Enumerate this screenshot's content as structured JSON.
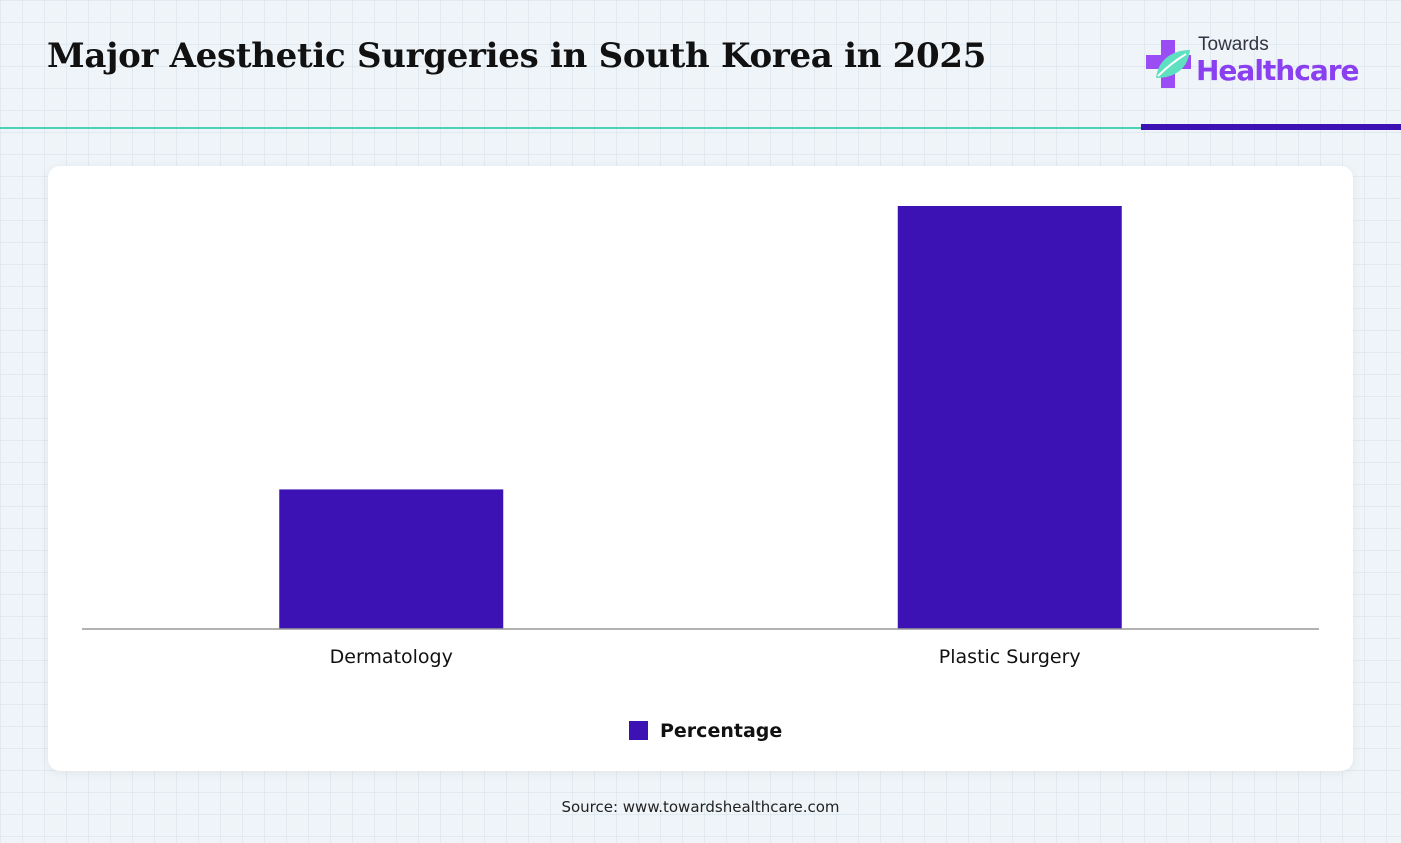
{
  "header": {
    "title": "Major Aesthetic Surgeries in South Korea in 2025"
  },
  "logo": {
    "line1": "Towards",
    "line2": "Healthcare",
    "icon": "medical-cross-leaf-icon"
  },
  "colors": {
    "bar": "#3c12b5",
    "accent_teal": "#4fd1b5",
    "accent_purple": "#3c12b5",
    "logo_purple": "#8a3ff0"
  },
  "chart_data": {
    "type": "bar",
    "categories": [
      "Dermatology",
      "Plastic Surgery"
    ],
    "series": [
      {
        "name": "Percentage",
        "values": [
          33,
          100
        ]
      }
    ],
    "title": "",
    "xlabel": "",
    "ylabel": "",
    "ylim": [
      0,
      100
    ],
    "grid": false,
    "legend": "bottom-center"
  },
  "source": "Source: www.towardshealthcare.com"
}
